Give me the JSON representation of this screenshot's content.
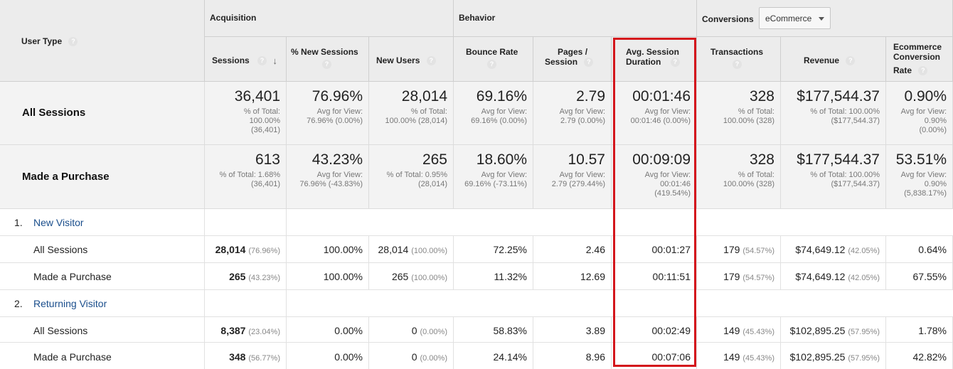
{
  "header": {
    "dimension_label": "User Type",
    "groups": {
      "acquisition": "Acquisition",
      "behavior": "Behavior",
      "conversions": "Conversions"
    },
    "conversions_dropdown": "eCommerce",
    "columns": {
      "sessions": "Sessions",
      "pct_new_sessions": "% New Sessions",
      "new_users": "New Users",
      "bounce_rate": "Bounce Rate",
      "pages_line1": "Pages /",
      "pages_line2": "Session",
      "duration_line1": "Avg. Session",
      "duration_line2": "Duration",
      "transactions": "Transactions",
      "revenue": "Revenue",
      "ecr_line1": "Ecommerce",
      "ecr_line2": "Conversion",
      "ecr_line3": "Rate"
    },
    "help_glyph": "?",
    "sort_glyph": "↓"
  },
  "summary": [
    {
      "label": "All Sessions",
      "sessions": {
        "value": "36,401",
        "sub": [
          "% of Total:",
          "100.00%",
          "(36,401)"
        ]
      },
      "pct_new": {
        "value": "76.96%",
        "sub": [
          "Avg for View:",
          "76.96% (0.00%)"
        ]
      },
      "new_users": {
        "value": "28,014",
        "sub": [
          "% of Total:",
          "100.00% (28,014)"
        ]
      },
      "bounce": {
        "value": "69.16%",
        "sub": [
          "Avg for View:",
          "69.16% (0.00%)"
        ]
      },
      "pages": {
        "value": "2.79",
        "sub": [
          "Avg for View:",
          "2.79 (0.00%)"
        ]
      },
      "duration": {
        "value": "00:01:46",
        "sub": [
          "Avg for View:",
          "00:01:46 (0.00%)"
        ]
      },
      "transactions": {
        "value": "328",
        "sub": [
          "% of Total:",
          "100.00% (328)"
        ]
      },
      "revenue": {
        "value": "$177,544.37",
        "sub": [
          "% of Total: 100.00%",
          "($177,544.37)"
        ]
      },
      "ecr": {
        "value": "0.90%",
        "sub": [
          "Avg for View:",
          "0.90%",
          "(0.00%)"
        ]
      }
    },
    {
      "label": "Made a Purchase",
      "sessions": {
        "value": "613",
        "sub": [
          "% of Total: 1.68%",
          "(36,401)"
        ]
      },
      "pct_new": {
        "value": "43.23%",
        "sub": [
          "Avg for View:",
          "76.96% (-43.83%)"
        ]
      },
      "new_users": {
        "value": "265",
        "sub": [
          "% of Total: 0.95%",
          "(28,014)"
        ]
      },
      "bounce": {
        "value": "18.60%",
        "sub": [
          "Avg for View:",
          "69.16% (-73.11%)"
        ]
      },
      "pages": {
        "value": "10.57",
        "sub": [
          "Avg for View:",
          "2.79 (279.44%)"
        ]
      },
      "duration": {
        "value": "00:09:09",
        "sub": [
          "Avg for View:",
          "00:01:46",
          "(419.54%)"
        ]
      },
      "transactions": {
        "value": "328",
        "sub": [
          "% of Total:",
          "100.00% (328)"
        ]
      },
      "revenue": {
        "value": "$177,544.37",
        "sub": [
          "% of Total: 100.00%",
          "($177,544.37)"
        ]
      },
      "ecr": {
        "value": "53.51%",
        "sub": [
          "Avg for View:",
          "0.90%",
          "(5,838.17%)"
        ]
      }
    }
  ],
  "groups": [
    {
      "index": "1.",
      "name": "New Visitor",
      "rows": [
        {
          "label": "All Sessions",
          "sessions": "28,014",
          "sessions_pct": "(76.96%)",
          "pct_new": "100.00%",
          "new_users": "28,014",
          "new_users_pct": "(100.00%)",
          "bounce": "72.25%",
          "pages": "2.46",
          "duration": "00:01:27",
          "transactions": "179",
          "transactions_pct": "(54.57%)",
          "revenue": "$74,649.12",
          "revenue_pct": "(42.05%)",
          "ecr": "0.64%"
        },
        {
          "label": "Made a Purchase",
          "sessions": "265",
          "sessions_pct": "(43.23%)",
          "pct_new": "100.00%",
          "new_users": "265",
          "new_users_pct": "(100.00%)",
          "bounce": "11.32%",
          "pages": "12.69",
          "duration": "00:11:51",
          "transactions": "179",
          "transactions_pct": "(54.57%)",
          "revenue": "$74,649.12",
          "revenue_pct": "(42.05%)",
          "ecr": "67.55%"
        }
      ]
    },
    {
      "index": "2.",
      "name": "Returning Visitor",
      "rows": [
        {
          "label": "All Sessions",
          "sessions": "8,387",
          "sessions_pct": "(23.04%)",
          "pct_new": "0.00%",
          "new_users": "0",
          "new_users_pct": "(0.00%)",
          "bounce": "58.83%",
          "pages": "3.89",
          "duration": "00:02:49",
          "transactions": "149",
          "transactions_pct": "(45.43%)",
          "revenue": "$102,895.25",
          "revenue_pct": "(57.95%)",
          "ecr": "1.78%"
        },
        {
          "label": "Made a Purchase",
          "sessions": "348",
          "sessions_pct": "(56.77%)",
          "pct_new": "0.00%",
          "new_users": "0",
          "new_users_pct": "(0.00%)",
          "bounce": "24.14%",
          "pages": "8.96",
          "duration": "00:07:06",
          "transactions": "149",
          "transactions_pct": "(45.43%)",
          "revenue": "$102,895.25",
          "revenue_pct": "(57.95%)",
          "ecr": "42.82%"
        }
      ]
    }
  ],
  "colors": {
    "highlight": "#d4161c",
    "link": "#1a4e8c",
    "header_bg": "#ececec"
  }
}
